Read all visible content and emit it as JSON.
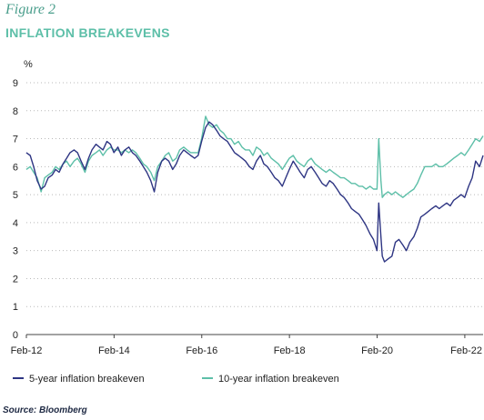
{
  "figure_label": "Figure 2",
  "source": "Source: Bloomberg",
  "colors": {
    "five_year": "#2e3583",
    "ten_year": "#5dbfa8",
    "grid": "#b9b9b9",
    "axis": "#444444"
  },
  "chart_data": {
    "type": "line",
    "title": "INFLATION BREAKEVENS",
    "ylabel": "%",
    "ylim": [
      0,
      9
    ],
    "yticks": [
      0,
      1,
      2,
      3,
      4,
      5,
      6,
      7,
      8,
      9
    ],
    "xlim": [
      2012.083,
      2022.5
    ],
    "xticks": [
      {
        "label": "Feb-12",
        "value": 2012.083
      },
      {
        "label": "Feb-14",
        "value": 2014.083
      },
      {
        "label": "Feb-16",
        "value": 2016.083
      },
      {
        "label": "Feb-18",
        "value": 2018.083
      },
      {
        "label": "Feb-20",
        "value": 2020.083
      },
      {
        "label": "Feb-22",
        "value": 2022.083
      }
    ],
    "grid": "horizontal-dotted",
    "legend_position": "bottom",
    "series": [
      {
        "name": "5-year inflation breakeven",
        "x": [
          2012.08,
          2012.17,
          2012.25,
          2012.33,
          2012.42,
          2012.5,
          2012.58,
          2012.67,
          2012.75,
          2012.83,
          2012.92,
          2013.0,
          2013.08,
          2013.17,
          2013.25,
          2013.33,
          2013.42,
          2013.5,
          2013.58,
          2013.67,
          2013.75,
          2013.83,
          2013.92,
          2014.0,
          2014.08,
          2014.17,
          2014.25,
          2014.33,
          2014.42,
          2014.5,
          2014.58,
          2014.67,
          2014.75,
          2014.83,
          2014.92,
          2015.0,
          2015.08,
          2015.17,
          2015.25,
          2015.33,
          2015.42,
          2015.5,
          2015.58,
          2015.67,
          2015.75,
          2015.83,
          2015.92,
          2016.0,
          2016.08,
          2016.17,
          2016.25,
          2016.33,
          2016.42,
          2016.5,
          2016.58,
          2016.67,
          2016.75,
          2016.83,
          2016.92,
          2017.0,
          2017.08,
          2017.17,
          2017.25,
          2017.33,
          2017.42,
          2017.5,
          2017.58,
          2017.67,
          2017.75,
          2017.83,
          2017.92,
          2018.0,
          2018.08,
          2018.17,
          2018.25,
          2018.33,
          2018.42,
          2018.5,
          2018.58,
          2018.67,
          2018.75,
          2018.83,
          2018.92,
          2019.0,
          2019.08,
          2019.17,
          2019.25,
          2019.33,
          2019.42,
          2019.5,
          2019.58,
          2019.67,
          2019.75,
          2019.83,
          2019.92,
          2020.0,
          2020.08,
          2020.12,
          2020.17,
          2020.2,
          2020.25,
          2020.33,
          2020.42,
          2020.5,
          2020.58,
          2020.67,
          2020.75,
          2020.83,
          2020.92,
          2021.0,
          2021.08,
          2021.17,
          2021.25,
          2021.33,
          2021.42,
          2021.5,
          2021.58,
          2021.67,
          2021.75,
          2021.83,
          2021.92,
          2022.0,
          2022.08,
          2022.17,
          2022.25,
          2022.33,
          2022.42,
          2022.5
        ],
        "y": [
          6.5,
          6.4,
          6.0,
          5.5,
          5.2,
          5.3,
          5.6,
          5.7,
          5.9,
          5.8,
          6.1,
          6.3,
          6.5,
          6.6,
          6.5,
          6.2,
          5.9,
          6.3,
          6.6,
          6.8,
          6.7,
          6.6,
          6.9,
          6.8,
          6.5,
          6.7,
          6.4,
          6.6,
          6.7,
          6.5,
          6.4,
          6.2,
          6.0,
          5.8,
          5.5,
          5.1,
          5.8,
          6.2,
          6.3,
          6.2,
          5.9,
          6.1,
          6.4,
          6.6,
          6.5,
          6.4,
          6.3,
          6.4,
          6.9,
          7.4,
          7.6,
          7.5,
          7.3,
          7.1,
          7.0,
          6.9,
          6.7,
          6.5,
          6.4,
          6.3,
          6.2,
          6.0,
          5.9,
          6.2,
          6.4,
          6.1,
          6.0,
          5.8,
          5.6,
          5.5,
          5.3,
          5.6,
          5.9,
          6.2,
          6.0,
          5.8,
          5.6,
          5.9,
          6.0,
          5.8,
          5.6,
          5.4,
          5.3,
          5.5,
          5.4,
          5.2,
          5.0,
          4.9,
          4.7,
          4.5,
          4.4,
          4.3,
          4.1,
          3.9,
          3.6,
          3.4,
          3.0,
          4.7,
          3.5,
          2.8,
          2.6,
          2.7,
          2.8,
          3.3,
          3.4,
          3.2,
          3.0,
          3.3,
          3.5,
          3.8,
          4.2,
          4.3,
          4.4,
          4.5,
          4.6,
          4.5,
          4.6,
          4.7,
          4.6,
          4.8,
          4.9,
          5.0,
          4.9,
          5.3,
          5.6,
          6.2,
          6.0,
          6.4
        ]
      },
      {
        "name": "10-year inflation breakeven",
        "x": [
          2012.08,
          2012.17,
          2012.25,
          2012.33,
          2012.42,
          2012.5,
          2012.58,
          2012.67,
          2012.75,
          2012.83,
          2012.92,
          2013.0,
          2013.08,
          2013.17,
          2013.25,
          2013.33,
          2013.42,
          2013.5,
          2013.58,
          2013.67,
          2013.75,
          2013.83,
          2013.92,
          2014.0,
          2014.08,
          2014.17,
          2014.25,
          2014.33,
          2014.42,
          2014.5,
          2014.58,
          2014.67,
          2014.75,
          2014.83,
          2014.92,
          2015.0,
          2015.08,
          2015.17,
          2015.25,
          2015.33,
          2015.42,
          2015.5,
          2015.58,
          2015.67,
          2015.75,
          2015.83,
          2015.92,
          2016.0,
          2016.08,
          2016.17,
          2016.25,
          2016.33,
          2016.42,
          2016.5,
          2016.58,
          2016.67,
          2016.75,
          2016.83,
          2016.92,
          2017.0,
          2017.08,
          2017.17,
          2017.25,
          2017.33,
          2017.42,
          2017.5,
          2017.58,
          2017.67,
          2017.75,
          2017.83,
          2017.92,
          2018.0,
          2018.08,
          2018.17,
          2018.25,
          2018.33,
          2018.42,
          2018.5,
          2018.58,
          2018.67,
          2018.75,
          2018.83,
          2018.92,
          2019.0,
          2019.08,
          2019.17,
          2019.25,
          2019.33,
          2019.42,
          2019.5,
          2019.58,
          2019.67,
          2019.75,
          2019.83,
          2019.92,
          2020.0,
          2020.08,
          2020.12,
          2020.17,
          2020.2,
          2020.25,
          2020.33,
          2020.42,
          2020.5,
          2020.58,
          2020.67,
          2020.75,
          2020.83,
          2020.92,
          2021.0,
          2021.08,
          2021.17,
          2021.25,
          2021.33,
          2021.42,
          2021.5,
          2021.58,
          2021.67,
          2021.75,
          2021.83,
          2021.92,
          2022.0,
          2022.08,
          2022.17,
          2022.25,
          2022.33,
          2022.42,
          2022.5
        ],
        "y": [
          5.9,
          6.0,
          5.8,
          5.6,
          5.1,
          5.6,
          5.7,
          5.8,
          6.0,
          5.9,
          6.1,
          6.2,
          6.0,
          6.2,
          6.3,
          6.1,
          5.8,
          6.2,
          6.4,
          6.5,
          6.6,
          6.4,
          6.6,
          6.7,
          6.6,
          6.6,
          6.5,
          6.6,
          6.5,
          6.6,
          6.5,
          6.3,
          6.1,
          6.0,
          5.8,
          5.5,
          6.0,
          6.2,
          6.4,
          6.5,
          6.2,
          6.3,
          6.6,
          6.7,
          6.6,
          6.5,
          6.5,
          6.5,
          7.0,
          7.8,
          7.5,
          7.4,
          7.5,
          7.3,
          7.2,
          7.0,
          7.0,
          6.8,
          6.9,
          6.7,
          6.6,
          6.6,
          6.4,
          6.7,
          6.6,
          6.4,
          6.5,
          6.3,
          6.2,
          6.1,
          5.9,
          6.1,
          6.3,
          6.4,
          6.2,
          6.1,
          6.0,
          6.2,
          6.3,
          6.1,
          6.0,
          5.9,
          5.8,
          5.9,
          5.8,
          5.7,
          5.6,
          5.6,
          5.5,
          5.4,
          5.4,
          5.3,
          5.3,
          5.2,
          5.3,
          5.2,
          5.2,
          7.0,
          5.5,
          4.9,
          5.0,
          5.1,
          5.0,
          5.1,
          5.0,
          4.9,
          5.0,
          5.1,
          5.2,
          5.4,
          5.7,
          6.0,
          6.0,
          6.0,
          6.1,
          6.0,
          6.0,
          6.1,
          6.2,
          6.3,
          6.4,
          6.5,
          6.4,
          6.6,
          6.8,
          7.0,
          6.9,
          7.1
        ]
      }
    ]
  }
}
